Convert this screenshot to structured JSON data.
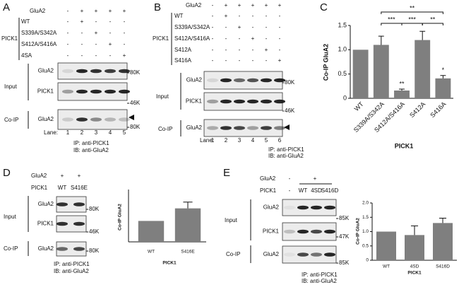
{
  "panels": {
    "A": {
      "label": "A",
      "header_rows": [
        {
          "label": "GluA2",
          "signs": [
            "-",
            "+",
            "+",
            "+",
            "+"
          ]
        }
      ],
      "group": {
        "label": "PICK1",
        "rows": [
          {
            "label": "WT",
            "signs": [
              "-",
              "+",
              "-",
              "-",
              "-"
            ]
          },
          {
            "label": "S339A/S342A",
            "signs": [
              "-",
              "-",
              "+",
              "-",
              "-"
            ]
          },
          {
            "label": "S412A/S416A",
            "signs": [
              "-",
              "-",
              "-",
              "+",
              "-"
            ]
          },
          {
            "label": "4SA",
            "signs": [
              "-",
              "-",
              "-",
              "-",
              "+"
            ]
          }
        ]
      },
      "input": {
        "label": "Input",
        "blots": [
          {
            "label": "GluA2",
            "marker": "80K"
          },
          {
            "label": "PICK1",
            "marker": "46K"
          }
        ]
      },
      "coip": {
        "label": "Co-IP",
        "blots": [
          {
            "label": "GluA2",
            "marker": "80K"
          }
        ]
      },
      "lane_label": "Lane:",
      "lanes": [
        "1",
        "2",
        "3",
        "4",
        "5"
      ],
      "notes": [
        "IP: anti-PICK1",
        "IB: anti-GluA2"
      ]
    },
    "B": {
      "label": "B",
      "header_rows": [
        {
          "label": "GluA2",
          "signs": [
            "-",
            "+",
            "+",
            "+",
            "+",
            "+"
          ]
        }
      ],
      "group": {
        "label": "PICK1",
        "rows": [
          {
            "label": "WT",
            "signs": [
              "-",
              "+",
              "-",
              "-",
              "-",
              "-"
            ]
          },
          {
            "label": "S339A/S342A",
            "signs": [
              "-",
              "-",
              "+",
              "-",
              "-",
              "-"
            ]
          },
          {
            "label": "S412A/S416A",
            "signs": [
              "-",
              "-",
              "-",
              "+",
              "-",
              "-"
            ]
          },
          {
            "label": "S412A",
            "signs": [
              "-",
              "-",
              "-",
              "-",
              "+",
              "-"
            ]
          },
          {
            "label": "S416A",
            "signs": [
              "-",
              "-",
              "-",
              "-",
              "-",
              "+"
            ]
          }
        ]
      },
      "input": {
        "label": "Input",
        "blots": [
          {
            "label": "GluA2",
            "marker": "80K"
          },
          {
            "label": "PICK1",
            "marker": "46K"
          }
        ]
      },
      "coip": {
        "label": "Co-IP",
        "blots": [
          {
            "label": "GluA2"
          }
        ]
      },
      "lane_label": "Lane:",
      "lanes": [
        "1",
        "2",
        "3",
        "4",
        "5",
        "6"
      ],
      "notes": [
        "IP: anti-PICK1",
        "IB: anti-GluA2"
      ]
    },
    "D": {
      "label": "D",
      "header_rows": [
        {
          "label": "GluA2",
          "signs": [
            "+",
            "+"
          ]
        },
        {
          "label": "PICK1",
          "signs": [
            "WT",
            "S416E"
          ]
        }
      ],
      "input": {
        "label": "Input",
        "blots": [
          {
            "label": "GluA2",
            "marker": "80K"
          },
          {
            "label": "PICK1",
            "marker": "46K"
          }
        ]
      },
      "coip": {
        "label": "Co-IP",
        "blots": [
          {
            "label": "GluA2",
            "marker": "80K"
          }
        ]
      },
      "notes": [
        "IP: anti-PICK1",
        "IB: anti-GluA2"
      ]
    },
    "E": {
      "label": "E",
      "header_rows": [
        {
          "label": "GluA2",
          "signs": [
            "-",
            "+"
          ]
        },
        {
          "label": "PICK1",
          "signs": [
            "-",
            "WT",
            "4SD",
            "S416D"
          ]
        }
      ],
      "input": {
        "label": "Input",
        "blots": [
          {
            "label": "GluA2",
            "marker": "85K"
          },
          {
            "label": "PICK1",
            "marker": "47K"
          }
        ]
      },
      "coip": {
        "label": "Co-IP",
        "blots": [
          {
            "label": "GluA2",
            "marker": "85K"
          }
        ]
      },
      "notes": [
        "IP: anti-PICK1",
        "IB: anti-GluA2"
      ]
    }
  },
  "chart_data": [
    {
      "type": "bar",
      "panel_label": "C",
      "categories": [
        "WT",
        "S339A/S342A",
        "S412A/S416A",
        "S412A",
        "S416A"
      ],
      "values": [
        1.0,
        1.1,
        0.16,
        1.2,
        0.41
      ],
      "errors": [
        null,
        0.18,
        0.03,
        0.18,
        0.06
      ],
      "color": "#7f7f7f",
      "ylabel": "Co-IP GluA2",
      "xlabel": "PICK1",
      "ylim": [
        0,
        1.5
      ],
      "yticks": [
        0,
        0.5,
        {
          "value": 1.0,
          "label": "1.0"
        },
        1.5
      ],
      "brackets": [
        {
          "text": "**",
          "from": 1,
          "to": 4
        },
        {
          "text": "***",
          "from": 1,
          "to": 2
        },
        {
          "text": "***",
          "from": 2,
          "to": 3
        },
        {
          "text": "**",
          "from": 3,
          "to": 4
        }
      ],
      "bar_annotations": [
        {
          "text": "**",
          "index": 2
        },
        {
          "text": "*",
          "index": 4
        }
      ]
    },
    {
      "type": "bar",
      "panel_label": "D",
      "categories": [
        "WT",
        "S416E"
      ],
      "values": [
        1.0,
        1.6
      ],
      "errors": [
        null,
        0.3
      ],
      "color": "#7f7f7f",
      "ylabel": "Co-IP GluA2",
      "xlabel": "PICK1",
      "ylim": [
        0,
        2.5
      ]
    },
    {
      "type": "bar",
      "panel_label": "E",
      "categories": [
        "WT",
        "4SD",
        "S416D"
      ],
      "values": [
        1.0,
        0.88,
        1.3
      ],
      "errors": [
        null,
        0.32,
        0.17
      ],
      "color": "#7f7f7f",
      "ylabel": "Co-IP GluA2",
      "xlabel": "PICK1",
      "ylim": [
        0,
        2.0
      ],
      "yticks": [
        0,
        0.5,
        {
          "value": 1.0,
          "label": "1.0"
        },
        1.5,
        {
          "value": 2.0,
          "label": "2.0"
        }
      ]
    }
  ]
}
